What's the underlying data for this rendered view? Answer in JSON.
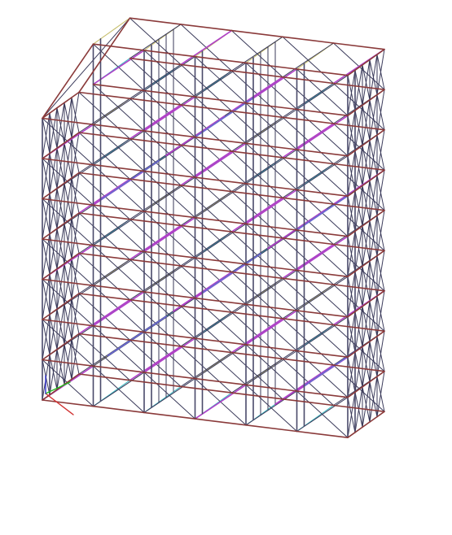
{
  "viewport": {
    "background": "#ffffff"
  },
  "colors": {
    "main_member": "#8a3a3a",
    "column": "#4a4a6a",
    "brace_dark": "#3a3a5a",
    "brace_purple": "#b040c8",
    "brace_blue": "#6a6ad0",
    "beam_cyan": "#40b8c0",
    "beam_yellow": "#c8c070",
    "axis_x": "#d03030",
    "axis_y": "#20c020",
    "axis_z": "#3030d0"
  },
  "structure": {
    "description_hidden": "",
    "type": "3d-space-frame-wireframe"
  },
  "axis_triad": {
    "icon": "coordinate-axis-icon"
  }
}
